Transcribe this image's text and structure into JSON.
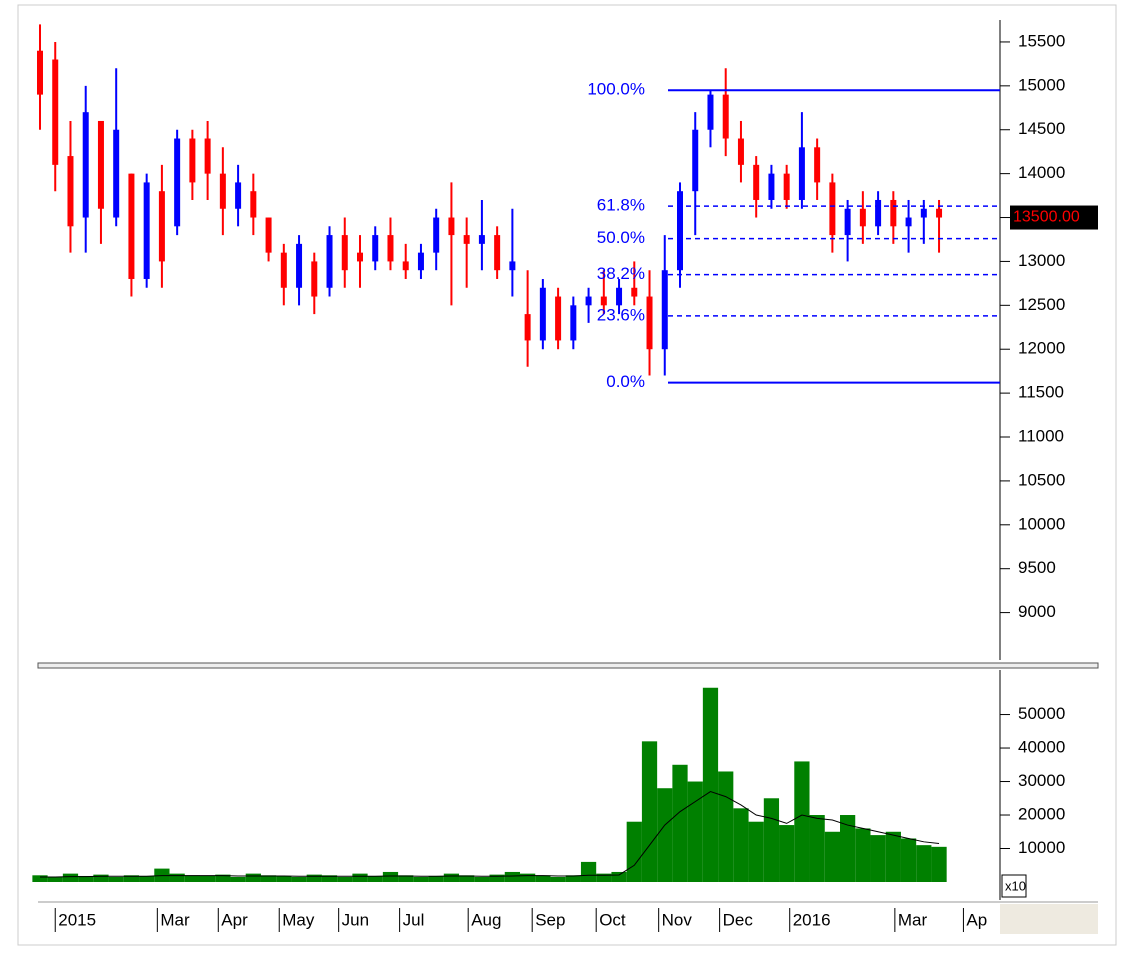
{
  "chart_data": [
    {
      "type": "ohlc",
      "xlim": [
        0,
        63
      ],
      "ylim": [
        8460,
        15750
      ],
      "yticks": [
        9000,
        9500,
        10000,
        10500,
        11000,
        11500,
        12000,
        12500,
        13000,
        13500,
        14000,
        14500,
        15000,
        15500
      ],
      "up_color": "#0000ff",
      "down_color": "#ff0000",
      "open": [
        15400,
        15300,
        14200,
        13500,
        14600,
        13500,
        14000,
        12800,
        13800,
        13400,
        14400,
        14400,
        14000,
        13600,
        13800,
        13500,
        13100,
        12700,
        13000,
        12700,
        13300,
        13100,
        13000,
        13300,
        13000,
        12900,
        13100,
        13500,
        13300,
        13200,
        13300,
        12900,
        12400,
        12100,
        12600,
        12100,
        12500,
        12600,
        12500,
        12700,
        12600,
        12000,
        12900,
        13800,
        14500,
        14900,
        14400,
        14100,
        13700,
        14000,
        13700,
        14300,
        13900,
        13300,
        13600,
        13400,
        13700,
        13400,
        13500,
        13600
      ],
      "high": [
        15700,
        15500,
        14600,
        15000,
        14600,
        15200,
        14000,
        14000,
        14100,
        14500,
        14500,
        14600,
        14300,
        14100,
        14000,
        13500,
        13200,
        13300,
        13100,
        13400,
        13500,
        13300,
        13400,
        13500,
        13200,
        13200,
        13600,
        13900,
        13500,
        13700,
        13400,
        13600,
        12900,
        12800,
        12700,
        12600,
        12700,
        12900,
        12800,
        13000,
        12900,
        13300,
        13900,
        14700,
        14950,
        15200,
        14600,
        14200,
        14100,
        14100,
        14700,
        14400,
        14000,
        13700,
        13800,
        13800,
        13800,
        13700,
        13700,
        13700
      ],
      "low": [
        14500,
        13800,
        13100,
        13100,
        13200,
        13400,
        12600,
        12700,
        12700,
        13300,
        13700,
        13700,
        13300,
        13400,
        13300,
        13000,
        12500,
        12500,
        12400,
        12600,
        12700,
        12700,
        12900,
        12900,
        12800,
        12800,
        12900,
        12500,
        12700,
        12900,
        12800,
        12600,
        11800,
        12000,
        12000,
        12000,
        12300,
        12400,
        12400,
        12500,
        11700,
        11700,
        12700,
        13300,
        14300,
        14200,
        13900,
        13500,
        13600,
        13600,
        13600,
        13700,
        13100,
        13000,
        13200,
        13300,
        13200,
        13100,
        13200,
        13100
      ],
      "close": [
        14900,
        14100,
        13400,
        14700,
        13600,
        14500,
        12800,
        13900,
        13000,
        14400,
        13900,
        14000,
        13600,
        13900,
        13500,
        13100,
        12700,
        13200,
        12600,
        13300,
        12900,
        13000,
        13300,
        13000,
        12900,
        13100,
        13500,
        13300,
        13200,
        13300,
        12900,
        13000,
        12100,
        12700,
        12100,
        12500,
        12600,
        12500,
        12700,
        12600,
        12000,
        12900,
        13800,
        14500,
        14900,
        14400,
        14100,
        13700,
        14000,
        13700,
        14300,
        13900,
        13300,
        13600,
        13400,
        13700,
        13400,
        13500,
        13600,
        13500
      ],
      "fib_levels": [
        {
          "name": "100.0%",
          "price": 14950,
          "style": "solid"
        },
        {
          "name": "61.8%",
          "price": 13630,
          "style": "dashed"
        },
        {
          "name": "50.0%",
          "price": 13260,
          "style": "dashed"
        },
        {
          "name": "38.2%",
          "price": 12850,
          "style": "dashed"
        },
        {
          "name": "23.6%",
          "price": 12380,
          "style": "dashed"
        },
        {
          "name": "0.0%",
          "price": 11620,
          "style": "solid"
        }
      ],
      "fib_color": "#0000ff",
      "last_price": {
        "value": 13500,
        "label": "13500.00"
      }
    },
    {
      "type": "bar",
      "xlim": [
        0,
        63
      ],
      "ylim": [
        0,
        63300
      ],
      "yticks": [
        10000,
        20000,
        30000,
        40000,
        50000
      ],
      "color": "#008000",
      "ma_color": "#000000",
      "values": [
        2000,
        1500,
        2500,
        1800,
        2200,
        1500,
        2000,
        1800,
        4000,
        2500,
        2000,
        1800,
        2200,
        1500,
        2500,
        2000,
        1800,
        1500,
        2200,
        2000,
        1500,
        2500,
        1800,
        3000,
        2000,
        1500,
        1800,
        2500,
        2000,
        1500,
        2200,
        3000,
        2500,
        2000,
        1500,
        2000,
        6000,
        2500,
        3000,
        18000,
        42000,
        28000,
        35000,
        30000,
        58000,
        33000,
        22000,
        18000,
        25000,
        17000,
        36000,
        20000,
        15000,
        20000,
        16000,
        14000,
        15000,
        13000,
        11000,
        10500
      ],
      "ma": [
        1500,
        1500,
        1600,
        1600,
        1700,
        1700,
        1700,
        1700,
        1900,
        1900,
        1900,
        1900,
        1900,
        1800,
        1800,
        1800,
        1800,
        1700,
        1700,
        1700,
        1700,
        1700,
        1700,
        1800,
        1800,
        1700,
        1700,
        1800,
        1800,
        1700,
        1700,
        1800,
        1900,
        1900,
        1800,
        1800,
        2000,
        2000,
        2100,
        5000,
        11000,
        17000,
        21000,
        24000,
        27000,
        25500,
        23000,
        20000,
        19000,
        17500,
        20000,
        19000,
        18500,
        17000,
        16000,
        15000,
        14000,
        13000,
        12000,
        11500
      ],
      "xticks": [
        {
          "value": 1.0,
          "label": "2015"
        },
        {
          "value": 7.7,
          "label": "Mar"
        },
        {
          "value": 11.7,
          "label": "Apr"
        },
        {
          "value": 15.7,
          "label": "May"
        },
        {
          "value": 19.6,
          "label": "Jun"
        },
        {
          "value": 23.6,
          "label": "Jul"
        },
        {
          "value": 28.1,
          "label": "Aug"
        },
        {
          "value": 32.3,
          "label": "Sep"
        },
        {
          "value": 36.5,
          "label": "Oct"
        },
        {
          "value": 40.6,
          "label": "Nov"
        },
        {
          "value": 44.6,
          "label": "Dec"
        },
        {
          "value": 49.2,
          "label": "2016"
        },
        {
          "value": 56.1,
          "label": "Mar"
        },
        {
          "value": 60.6,
          "label": "Ap"
        }
      ],
      "unit_label": "x10"
    }
  ]
}
